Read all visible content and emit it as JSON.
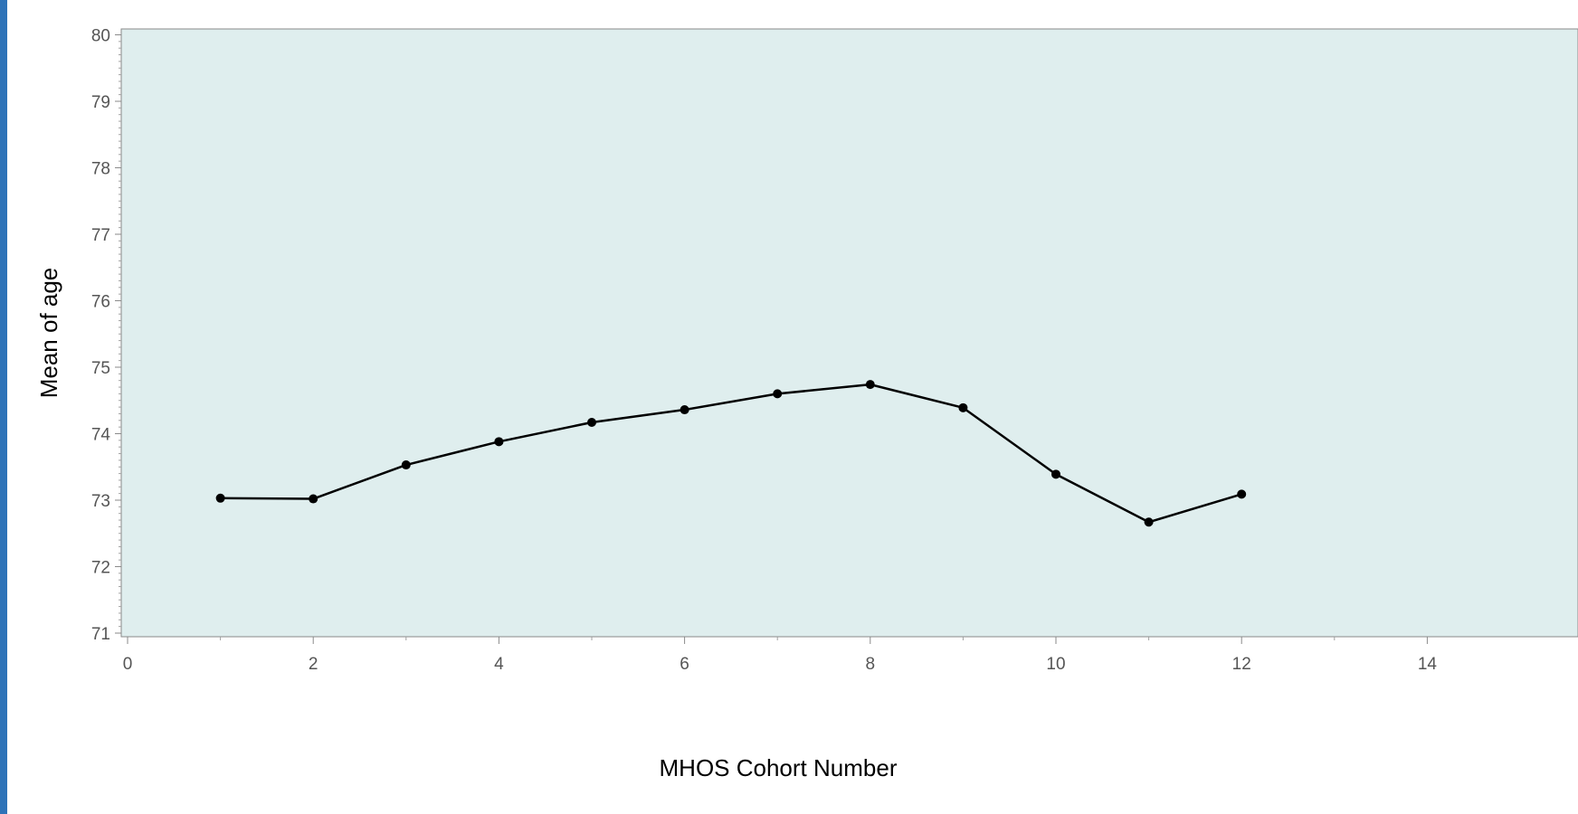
{
  "chart_data": {
    "type": "line",
    "title": "",
    "xlabel": "MHOS Cohort Number",
    "ylabel": "Mean of age",
    "xlim": [
      0,
      14
    ],
    "ylim": [
      71,
      80
    ],
    "x_ticks": [
      0,
      2,
      4,
      6,
      8,
      10,
      12,
      14
    ],
    "y_ticks": [
      71,
      72,
      73,
      74,
      75,
      76,
      77,
      78,
      79,
      80
    ],
    "grid": false,
    "legend": "none",
    "series": [
      {
        "x": [
          1,
          2,
          3,
          4,
          5,
          6,
          7,
          8,
          9,
          10,
          11,
          12
        ],
        "values": [
          73.03,
          73.02,
          73.53,
          73.88,
          74.17,
          74.36,
          74.6,
          74.74,
          74.39,
          73.39,
          72.67,
          73.09
        ]
      }
    ],
    "colors": {
      "plot_background": "#dfeeee",
      "line": "#000000",
      "marker": "#000000",
      "frame": "#2e73b8"
    }
  }
}
